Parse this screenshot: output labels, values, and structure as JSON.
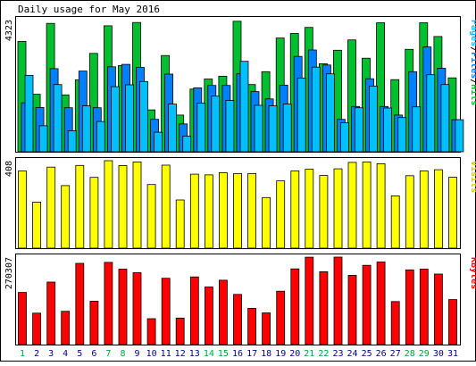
{
  "title": "Daily usage for May 2016",
  "colors": {
    "hits": "#00c030",
    "files": "#0080ff",
    "pages": "#00c0ff",
    "visits": "#ffff00",
    "kbytes": "#ff0000",
    "weekend_label": "#00a040",
    "weekday_label": "#000080"
  },
  "chart_data": [
    {
      "type": "bar",
      "panel": "hits-files-pages",
      "title": "Daily usage for May 2016",
      "ymax_label": "4323",
      "ylim": [
        0,
        4323
      ],
      "side_label": [
        "Pages",
        "/",
        "Files",
        "/",
        "Hits"
      ],
      "side_label_colors": [
        "#00c0ff",
        "#000000",
        "#0080ff",
        "#000000",
        "#00c030"
      ],
      "categories": [
        "1",
        "2",
        "3",
        "4",
        "5",
        "6",
        "7",
        "8",
        "9",
        "10",
        "11",
        "12",
        "13",
        "14",
        "15",
        "16",
        "17",
        "18",
        "19",
        "20",
        "21",
        "22",
        "23",
        "24",
        "25",
        "26",
        "27",
        "28",
        "29",
        "30",
        "31"
      ],
      "series": [
        {
          "name": "Hits",
          "values": [
            3610,
            1880,
            4200,
            1860,
            2350,
            3220,
            4120,
            2820,
            4230,
            1370,
            3150,
            1200,
            2050,
            2380,
            2470,
            4270,
            2200,
            2620,
            3720,
            3870,
            4070,
            2880,
            3320,
            3660,
            3060,
            4220,
            2360,
            3350,
            4220,
            3770,
            2420
          ]
        },
        {
          "name": "Files",
          "values": [
            1600,
            1450,
            2720,
            1440,
            2640,
            1440,
            2780,
            2860,
            2760,
            1060,
            2540,
            910,
            2090,
            2170,
            2170,
            2550,
            1970,
            1730,
            2180,
            3120,
            3330,
            2840,
            1060,
            1480,
            2390,
            1480,
            1200,
            2620,
            3430,
            2730,
            1050
          ]
        },
        {
          "name": "Pages",
          "values": [
            2500,
            850,
            2200,
            690,
            1500,
            990,
            2130,
            2190,
            2300,
            640,
            1560,
            510,
            1590,
            1820,
            1680,
            2960,
            1520,
            1500,
            1560,
            2410,
            2770,
            2550,
            950,
            1440,
            2150,
            1430,
            1120,
            1470,
            2520,
            2200,
            1050
          ]
        }
      ]
    },
    {
      "type": "bar",
      "panel": "visits",
      "ymax_label": "408",
      "ylim": [
        0,
        408
      ],
      "side_label": [
        "Visits"
      ],
      "side_label_colors": [
        "#cccc00"
      ],
      "categories": [
        "1",
        "2",
        "3",
        "4",
        "5",
        "6",
        "7",
        "8",
        "9",
        "10",
        "11",
        "12",
        "13",
        "14",
        "15",
        "16",
        "17",
        "18",
        "19",
        "20",
        "21",
        "22",
        "23",
        "24",
        "25",
        "26",
        "27",
        "28",
        "29",
        "30",
        "31"
      ],
      "series": [
        {
          "name": "Visits",
          "values": [
            360,
            215,
            378,
            292,
            386,
            330,
            408,
            385,
            402,
            297,
            387,
            225,
            345,
            342,
            352,
            348,
            348,
            236,
            314,
            360,
            368,
            339,
            370,
            400,
            402,
            394,
            244,
            338,
            360,
            366,
            331
          ]
        }
      ]
    },
    {
      "type": "bar",
      "panel": "kbytes",
      "ymax_label": "270307",
      "ylim": [
        0,
        270307
      ],
      "side_label": [
        "KBytes"
      ],
      "side_label_colors": [
        "#ff0000"
      ],
      "categories": [
        "1",
        "2",
        "3",
        "4",
        "5",
        "6",
        "7",
        "8",
        "9",
        "10",
        "11",
        "12",
        "13",
        "14",
        "15",
        "16",
        "17",
        "18",
        "19",
        "20",
        "21",
        "22",
        "23",
        "24",
        "25",
        "26",
        "27",
        "28",
        "29",
        "30",
        "31"
      ],
      "series": [
        {
          "name": "KBytes",
          "values": [
            161000,
            97000,
            193000,
            103000,
            251000,
            134000,
            254000,
            233000,
            222000,
            80000,
            205000,
            82000,
            209000,
            178000,
            199000,
            155000,
            112000,
            98000,
            165000,
            234000,
            270000,
            225000,
            270307,
            214000,
            245000,
            255000,
            133000,
            231000,
            233000,
            218000,
            139000
          ]
        }
      ]
    }
  ],
  "x_axis": {
    "day_labels": [
      "1",
      "2",
      "3",
      "4",
      "5",
      "6",
      "7",
      "8",
      "9",
      "10",
      "11",
      "12",
      "13",
      "14",
      "15",
      "16",
      "17",
      "18",
      "19",
      "20",
      "21",
      "22",
      "23",
      "24",
      "25",
      "26",
      "27",
      "28",
      "29",
      "30",
      "31"
    ],
    "weekend_days": [
      1,
      7,
      8,
      14,
      15,
      21,
      22,
      28,
      29
    ]
  }
}
